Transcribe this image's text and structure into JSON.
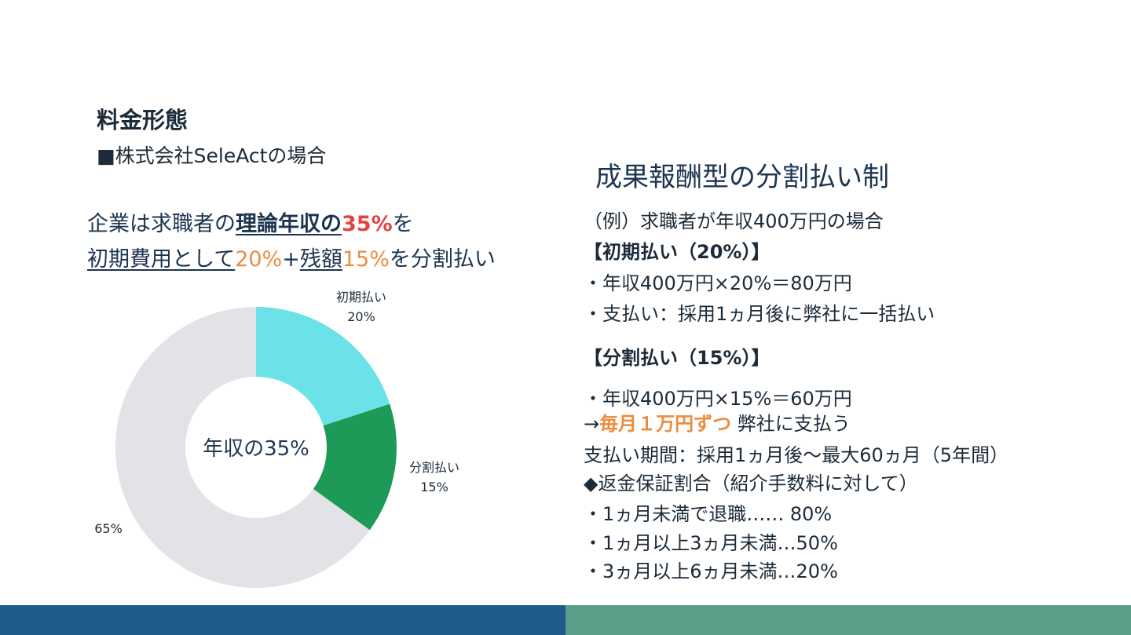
{
  "section_title": "料金形態",
  "subtitle": "■株式会社SeleActの場合",
  "headline": {
    "line1": {
      "p1": "企業は求職者の",
      "p2": "理論年収の",
      "p3": "35%",
      "p4": "を"
    },
    "line2": {
      "p1": "初期費用として",
      "p2": "20%",
      "p3": "+",
      "p4": "残額",
      "p5": "15%",
      "p6": "を分割払い"
    }
  },
  "chart_data": {
    "type": "pie",
    "subtype": "donut",
    "center_label": "年収の35%",
    "slices": [
      {
        "label": "初期払い",
        "value_label": "20%",
        "value": 20,
        "color": "#6ae2e8"
      },
      {
        "label": "分割払い",
        "value_label": "15%",
        "value": 15,
        "color": "#1e9a58"
      },
      {
        "label": "",
        "value_label": "65%",
        "value": 65,
        "color": "#e1e3e6"
      }
    ]
  },
  "right_panel": {
    "title": "成果報酬型の分割払い制",
    "example": "（例）求職者が年収400万円の場合",
    "initial_heading": "【初期払い（20%）】",
    "initial_items": [
      "・年収400万円×20%＝80万円",
      "・支払い：採用1ヵ月後に弊社に一括払い"
    ],
    "split_heading": "【分割払い（15%）】",
    "split_calc": "・年収400万円×15%＝60万円",
    "monthly": {
      "arrow": "→",
      "highlight": "毎月１万円ずつ",
      "rest": " 弊社に支払う"
    },
    "period": "支払い期間：採用1ヵ月後〜最大60ヵ月（5年間）",
    "refund_heading": "◆返金保証割合（紹介手数料に対して）",
    "refund_items": [
      "・1ヵ月未満で退職……  80%",
      "・1ヵ月以上3ヵ月未満…50%",
      "・3ヵ月以上6ヵ月未満…20%"
    ]
  },
  "colors": {
    "footer_left": "#1f5c8c",
    "footer_right": "#5b9e8a",
    "accent_red": "#e04444",
    "accent_orange": "#ee8c3c"
  }
}
